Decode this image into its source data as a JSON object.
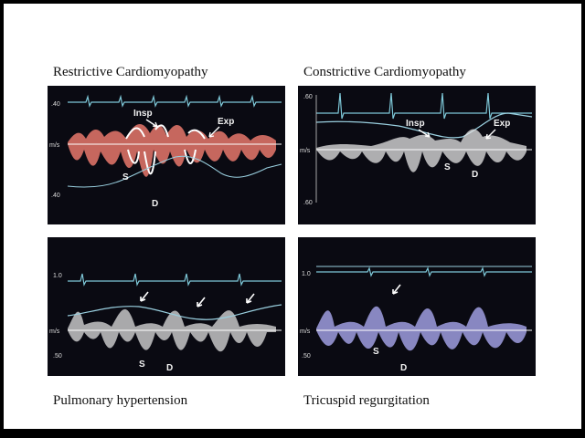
{
  "panels": [
    {
      "title": "Restrictive Cardiomyopathy",
      "axis": {
        "top": ".40",
        "mid": "m/s",
        "bottom": ".40"
      },
      "wave_labels": {
        "insp": "Insp",
        "exp": "Exp",
        "s": "S",
        "d": "D"
      },
      "flow_color": "#e8786c"
    },
    {
      "title": "Constrictive Cardiomyopathy",
      "axis": {
        "top": ".60",
        "mid": "m/s",
        "bottom": ".60"
      },
      "wave_labels": {
        "insp": "Insp",
        "exp": "Exp",
        "s": "S",
        "d": "D"
      },
      "flow_color": "#e6e6e6"
    },
    {
      "title": "Pulmonary hypertension",
      "axis": {
        "top": "1.0",
        "mid": "m/s",
        "bottom": ".50"
      },
      "wave_labels": {
        "s": "S",
        "d": "D"
      },
      "flow_color": "#ececec"
    },
    {
      "title": "Tricuspid regurgitation",
      "axis": {
        "top": "1.0",
        "mid": "m/s",
        "bottom": ".50"
      },
      "wave_labels": {
        "s": "S",
        "d": "D"
      },
      "flow_color": "#a8a6ee"
    }
  ],
  "colors": {
    "ecg": "#7ec8d8",
    "respiration": "#9ad0e0",
    "baseline": "#ffffff"
  }
}
